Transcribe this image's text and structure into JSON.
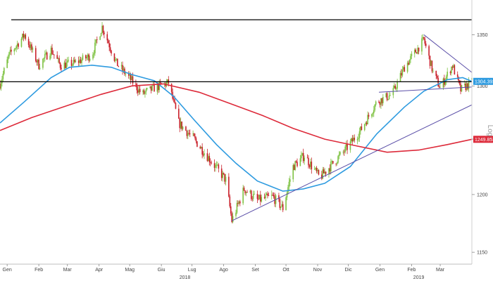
{
  "chart_data": {
    "type": "candlestick",
    "log_scale": true,
    "scale_label": "Log",
    "x_range": [
      "2018-01-01",
      "2019-04-08"
    ],
    "y_range": [
      1140,
      1385
    ],
    "y_ticks": [
      1150,
      1200,
      1250,
      1300,
      1350
    ],
    "y_tick_labels": [
      "1150",
      "1200",
      "1250",
      "1300",
      "1350"
    ],
    "month_ticks": [
      {
        "date": "2018-01-08",
        "label": "Gen"
      },
      {
        "date": "2018-02-08",
        "label": "Feb"
      },
      {
        "date": "2018-03-08",
        "label": "Mar"
      },
      {
        "date": "2018-04-08",
        "label": "Apr"
      },
      {
        "date": "2018-05-08",
        "label": "Mag"
      },
      {
        "date": "2018-06-08",
        "label": "Giu"
      },
      {
        "date": "2018-07-08",
        "label": "Lug"
      },
      {
        "date": "2018-08-08",
        "label": "Ago"
      },
      {
        "date": "2018-09-08",
        "label": "Set"
      },
      {
        "date": "2018-10-08",
        "label": "Ott"
      },
      {
        "date": "2018-11-08",
        "label": "Nov"
      },
      {
        "date": "2018-12-08",
        "label": "Dic"
      },
      {
        "date": "2019-01-08",
        "label": "Gen"
      },
      {
        "date": "2019-02-08",
        "label": "Feb"
      },
      {
        "date": "2019-03-08",
        "label": "Mar"
      }
    ],
    "year_labels": [
      {
        "date": "2018-07-01",
        "label": "2018"
      },
      {
        "date": "2019-02-15",
        "label": "2019"
      }
    ],
    "price_anchors": [
      [
        "2018-01-01",
        1302
      ],
      [
        "2018-01-10",
        1330
      ],
      [
        "2018-01-25",
        1350
      ],
      [
        "2018-02-08",
        1320
      ],
      [
        "2018-02-20",
        1335
      ],
      [
        "2018-03-01",
        1320
      ],
      [
        "2018-03-15",
        1322
      ],
      [
        "2018-04-01",
        1330
      ],
      [
        "2018-04-11",
        1358
      ],
      [
        "2018-04-25",
        1322
      ],
      [
        "2018-05-10",
        1305
      ],
      [
        "2018-05-20",
        1292
      ],
      [
        "2018-06-01",
        1298
      ],
      [
        "2018-06-15",
        1303
      ],
      [
        "2018-06-25",
        1265
      ],
      [
        "2018-07-10",
        1250
      ],
      [
        "2018-07-25",
        1232
      ],
      [
        "2018-08-10",
        1213
      ],
      [
        "2018-08-16",
        1177
      ],
      [
        "2018-08-28",
        1205
      ],
      [
        "2018-09-10",
        1195
      ],
      [
        "2018-09-25",
        1198
      ],
      [
        "2018-10-05",
        1188
      ],
      [
        "2018-10-15",
        1225
      ],
      [
        "2018-10-26",
        1235
      ],
      [
        "2018-11-10",
        1215
      ],
      [
        "2018-11-20",
        1225
      ],
      [
        "2018-12-05",
        1240
      ],
      [
        "2018-12-20",
        1258
      ],
      [
        "2019-01-05",
        1285
      ],
      [
        "2019-01-20",
        1292
      ],
      [
        "2019-02-01",
        1318
      ],
      [
        "2019-02-20",
        1345
      ],
      [
        "2019-03-01",
        1313
      ],
      [
        "2019-03-08",
        1298
      ],
      [
        "2019-03-20",
        1320
      ],
      [
        "2019-03-28",
        1296
      ],
      [
        "2019-04-08",
        1304
      ]
    ],
    "series": [
      {
        "name": "",
        "color": "#2e9be0",
        "points": [
          [
            "2018-01-01",
            1265
          ],
          [
            "2018-01-25",
            1285
          ],
          [
            "2018-02-20",
            1308
          ],
          [
            "2018-03-10",
            1318
          ],
          [
            "2018-04-01",
            1320
          ],
          [
            "2018-04-20",
            1318
          ],
          [
            "2018-05-10",
            1311
          ],
          [
            "2018-06-01",
            1305
          ],
          [
            "2018-06-20",
            1290
          ],
          [
            "2018-07-10",
            1268
          ],
          [
            "2018-08-01",
            1245
          ],
          [
            "2018-08-20",
            1228
          ],
          [
            "2018-09-10",
            1212
          ],
          [
            "2018-10-05",
            1203
          ],
          [
            "2018-10-25",
            1205
          ],
          [
            "2018-11-15",
            1210
          ],
          [
            "2018-12-10",
            1225
          ],
          [
            "2019-01-05",
            1255
          ],
          [
            "2019-02-01",
            1280
          ],
          [
            "2019-02-20",
            1295
          ],
          [
            "2019-03-15",
            1306
          ],
          [
            "2019-03-30",
            1308
          ],
          [
            "2019-04-08",
            1304.3926
          ]
        ]
      },
      {
        "name": "",
        "color": "#dd2a3a",
        "points": [
          [
            "2018-01-01",
            1258
          ],
          [
            "2018-02-01",
            1270
          ],
          [
            "2018-03-10",
            1282
          ],
          [
            "2018-04-10",
            1292
          ],
          [
            "2018-05-10",
            1300
          ],
          [
            "2018-06-10",
            1302
          ],
          [
            "2018-07-15",
            1294
          ],
          [
            "2018-08-15",
            1283
          ],
          [
            "2018-09-15",
            1272
          ],
          [
            "2018-10-15",
            1260
          ],
          [
            "2018-11-15",
            1250
          ],
          [
            "2018-12-15",
            1244
          ],
          [
            "2019-01-15",
            1238
          ],
          [
            "2019-02-15",
            1240
          ],
          [
            "2019-03-15",
            1245
          ],
          [
            "2019-04-08",
            1249.8533
          ]
        ]
      }
    ],
    "horizontal_lines": [
      {
        "value": 1365,
        "from": "2018-01-12",
        "to": "2019-04-08"
      },
      {
        "value": 1304,
        "from": "2018-01-01",
        "to": "2019-04-08"
      }
    ],
    "trendlines": [
      {
        "from": [
          "2018-08-16",
          1177
        ],
        "to": [
          "2019-04-08",
          1282
        ],
        "color": "#5b4fa8"
      },
      {
        "from": [
          "2019-01-07",
          1294
        ],
        "to": [
          "2019-04-08",
          1299
        ],
        "color": "#5b4fa8"
      },
      {
        "from": [
          "2019-02-20",
          1350
        ],
        "to": [
          "2019-04-08",
          1313
        ],
        "color": "#5b4fa8"
      }
    ],
    "price_labels": [
      {
        "text": "1304.3926",
        "value": 1304.3926,
        "color": "#2e9be0"
      },
      {
        "text": "1249.8533",
        "value": 1249.8533,
        "color": "#dd2a3a"
      }
    ],
    "candle_colors": {
      "up": "#7ec242",
      "down": "#c9202a"
    },
    "grid": false
  }
}
